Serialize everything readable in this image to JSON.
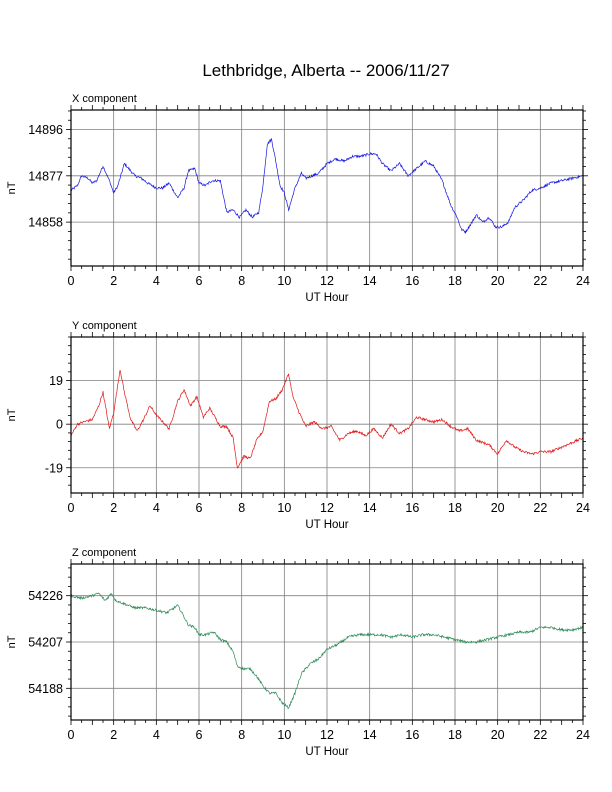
{
  "title": "Lethbridge, Alberta -- 2006/11/27",
  "chart_data": [
    {
      "type": "line",
      "title": "X component",
      "xlabel": "UT Hour",
      "ylabel": "nT",
      "xlim": [
        0,
        24
      ],
      "ylim": [
        14840,
        14904
      ],
      "x_ticks": [
        "0",
        "2",
        "4",
        "6",
        "8",
        "10",
        "12",
        "14",
        "16",
        "18",
        "20",
        "22",
        "24"
      ],
      "y_ticks": [
        14858,
        14877,
        14896
      ],
      "grid": true,
      "series": [
        {
          "color": "#1515e0",
          "x": [
            0,
            0.3,
            0.5,
            0.8,
            1.0,
            1.2,
            1.5,
            1.8,
            2.0,
            2.2,
            2.5,
            2.7,
            3.0,
            3.3,
            3.6,
            4.0,
            4.3,
            4.6,
            5.0,
            5.3,
            5.5,
            5.8,
            6.0,
            6.3,
            6.6,
            7.0,
            7.3,
            7.6,
            7.9,
            8.2,
            8.5,
            8.8,
            9.0,
            9.2,
            9.4,
            9.6,
            9.8,
            10.0,
            10.2,
            10.5,
            10.8,
            11.0,
            11.3,
            11.6,
            12.0,
            12.4,
            12.8,
            13.2,
            13.6,
            14.0,
            14.3,
            14.6,
            15.0,
            15.4,
            15.8,
            16.2,
            16.6,
            17.0,
            17.4,
            17.8,
            18.1,
            18.3,
            18.5,
            18.8,
            19.0,
            19.3,
            19.6,
            19.9,
            20.2,
            20.5,
            20.8,
            21.2,
            21.6,
            22.0,
            22.5,
            23.0,
            23.5,
            24.0
          ],
          "y": [
            14871,
            14873,
            14877,
            14876,
            14874,
            14875,
            14881,
            14875,
            14870,
            14873,
            14882,
            14880,
            14877,
            14876,
            14874,
            14872,
            14872,
            14874,
            14868,
            14872,
            14879,
            14880,
            14874,
            14873,
            14875,
            14875,
            14862,
            14863,
            14860,
            14863,
            14860,
            14862,
            14873,
            14890,
            14892,
            14883,
            14873,
            14870,
            14863,
            14872,
            14878,
            14876,
            14877,
            14878,
            14882,
            14884,
            14883,
            14885,
            14885,
            14886,
            14886,
            14882,
            14879,
            14882,
            14877,
            14880,
            14883,
            14881,
            14875,
            14865,
            14860,
            14855,
            14854,
            14858,
            14861,
            14858,
            14860,
            14856,
            14856,
            14858,
            14864,
            14867,
            14871,
            14872,
            14874,
            14875,
            14876,
            14877
          ]
        }
      ]
    },
    {
      "type": "line",
      "title": "Y component",
      "xlabel": "UT Hour",
      "ylabel": "nT",
      "xlim": [
        0,
        24
      ],
      "ylim": [
        -30,
        38
      ],
      "x_ticks": [
        "0",
        "2",
        "4",
        "6",
        "8",
        "10",
        "12",
        "14",
        "16",
        "18",
        "20",
        "22",
        "24"
      ],
      "y_ticks": [
        -19,
        0,
        19
      ],
      "grid": true,
      "series": [
        {
          "color": "#e01515",
          "x": [
            0,
            0.3,
            0.6,
            1.0,
            1.3,
            1.5,
            1.8,
            2.0,
            2.3,
            2.5,
            2.8,
            3.1,
            3.4,
            3.7,
            4.0,
            4.3,
            4.6,
            5.0,
            5.3,
            5.6,
            5.9,
            6.2,
            6.5,
            7.0,
            7.3,
            7.6,
            7.8,
            8.1,
            8.4,
            8.7,
            9.0,
            9.3,
            9.6,
            9.9,
            10.2,
            10.4,
            10.7,
            11.0,
            11.4,
            11.8,
            12.2,
            12.6,
            13.0,
            13.4,
            13.8,
            14.2,
            14.6,
            15.0,
            15.4,
            15.8,
            16.2,
            16.6,
            17.0,
            17.4,
            17.8,
            18.2,
            18.6,
            19.0,
            19.3,
            19.6,
            20.0,
            20.4,
            20.8,
            21.2,
            21.6,
            22.0,
            22.5,
            23.0,
            23.5,
            24.0
          ],
          "y": [
            -5,
            0,
            1,
            2,
            8,
            14,
            -2,
            5,
            24,
            14,
            2,
            -3,
            2,
            8,
            4,
            1,
            -2,
            10,
            15,
            8,
            12,
            3,
            7,
            -1,
            -1,
            -6,
            -19,
            -14,
            -15,
            -7,
            -3,
            10,
            11,
            15,
            22,
            12,
            5,
            -1,
            1,
            -2,
            -1,
            -7,
            -4,
            -3,
            -5,
            -2,
            -6,
            0,
            -4,
            -2,
            3,
            2,
            1,
            2,
            -1,
            -3,
            -2,
            -7,
            -8,
            -9,
            -13,
            -7,
            -10,
            -12,
            -13,
            -12,
            -12,
            -10,
            -8,
            -6
          ]
        }
      ]
    },
    {
      "type": "line",
      "title": "Z component",
      "xlabel": "UT Hour",
      "ylabel": "nT",
      "xlim": [
        0,
        24
      ],
      "ylim": [
        54175,
        54239
      ],
      "x_ticks": [
        "0",
        "2",
        "4",
        "6",
        "8",
        "10",
        "12",
        "14",
        "16",
        "18",
        "20",
        "22",
        "24"
      ],
      "y_ticks": [
        54188,
        54207,
        54226
      ],
      "grid": true,
      "series": [
        {
          "color": "#2e8b57",
          "x": [
            0,
            0.5,
            1.0,
            1.3,
            1.6,
            1.9,
            2.1,
            2.4,
            2.7,
            3.0,
            3.5,
            4.0,
            4.5,
            5.0,
            5.2,
            5.5,
            5.8,
            6.0,
            6.3,
            6.7,
            7.0,
            7.3,
            7.6,
            7.8,
            8.1,
            8.4,
            8.7,
            9.0,
            9.3,
            9.6,
            9.9,
            10.2,
            10.5,
            10.8,
            11.2,
            11.6,
            12.0,
            12.5,
            13.0,
            13.5,
            14.0,
            14.5,
            15.0,
            15.5,
            16.0,
            16.5,
            17.0,
            17.5,
            18.0,
            18.5,
            19.0,
            19.5,
            20.0,
            20.5,
            21.0,
            21.5,
            22.0,
            22.5,
            23.0,
            23.5,
            24.0
          ],
          "y": [
            54226,
            54225,
            54226,
            54227,
            54224,
            54227,
            54224,
            54223,
            54222,
            54221,
            54221,
            54220,
            54219,
            54222,
            54219,
            54214,
            54213,
            54210,
            54210,
            54211,
            54208,
            54207,
            54203,
            54197,
            54196,
            54196,
            54193,
            54189,
            54186,
            54186,
            54182,
            54180,
            54186,
            54194,
            54198,
            54200,
            54204,
            54206,
            54209,
            54210,
            54210,
            54210,
            54209,
            54210,
            54209,
            54210,
            54210,
            54209,
            54208,
            54207,
            54207,
            54208,
            54209,
            54210,
            54211,
            54211,
            54213,
            54213,
            54212,
            54212,
            54213
          ]
        }
      ]
    }
  ]
}
